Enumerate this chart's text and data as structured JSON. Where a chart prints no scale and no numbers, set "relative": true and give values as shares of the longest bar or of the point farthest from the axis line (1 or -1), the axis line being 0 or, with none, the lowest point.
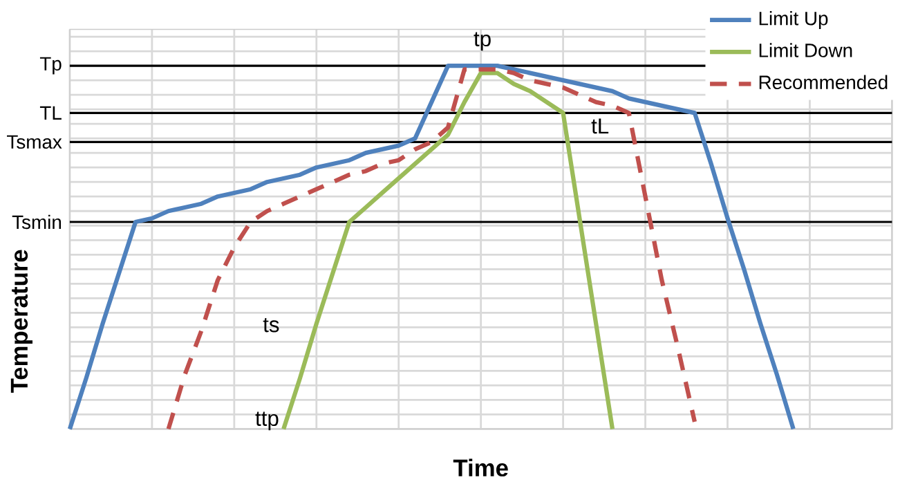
{
  "chart_data": {
    "type": "line",
    "relative": true,
    "xlabel": "Time",
    "ylabel": "Temperature",
    "grid": true,
    "legend": "top right",
    "categories": [
      null,
      null,
      null,
      null,
      null,
      null,
      null,
      null,
      null,
      null,
      null,
      null,
      null,
      null,
      null,
      null,
      null,
      null,
      null,
      null,
      null,
      null,
      null,
      null,
      null,
      null,
      null,
      null,
      null,
      null,
      null,
      null,
      null,
      null,
      null,
      null,
      null,
      null,
      null,
      null,
      null,
      null,
      null,
      null,
      null,
      null,
      null,
      null,
      null,
      null,
      null
    ],
    "series": [
      {
        "name": "Limit Up",
        "color": "#4f81bd",
        "values": [
          0,
          0.14,
          0.29,
          0.43,
          0.57,
          0.58,
          0.6,
          0.61,
          0.62,
          0.64,
          0.65,
          0.66,
          0.68,
          0.69,
          0.7,
          0.72,
          0.73,
          0.74,
          0.76,
          0.77,
          0.78,
          0.8,
          0.9,
          1,
          1,
          1,
          1,
          0.99,
          0.98,
          0.97,
          0.96,
          0.95,
          0.94,
          0.93,
          0.91,
          0.9,
          0.89,
          0.88,
          0.87,
          0.73,
          0.58,
          0.44,
          0.29,
          0.15,
          0,
          null,
          null,
          null,
          null,
          null,
          null
        ]
      },
      {
        "name": "Limit Down",
        "color": "#9bbb59",
        "values": [
          null,
          null,
          null,
          null,
          null,
          null,
          null,
          null,
          null,
          null,
          null,
          null,
          null,
          0,
          0.14,
          0.29,
          0.43,
          0.57,
          0.61,
          0.65,
          0.69,
          0.73,
          0.77,
          0.81,
          0.9,
          0.98,
          0.98,
          0.95,
          0.93,
          0.9,
          0.87,
          0.58,
          0.29,
          0,
          null,
          null,
          null,
          null,
          null,
          null,
          null,
          null,
          null,
          null,
          null,
          null,
          null,
          null,
          null,
          null,
          null
        ]
      },
      {
        "name": "Recommended",
        "color": "#c0504d",
        "line_style": "dashed",
        "values": [
          null,
          null,
          null,
          null,
          null,
          null,
          0,
          0.15,
          0.27,
          0.41,
          0.5,
          0.57,
          0.6,
          0.62,
          0.64,
          0.66,
          0.68,
          0.7,
          0.71,
          0.73,
          0.74,
          0.77,
          0.79,
          0.83,
          0.99,
          0.99,
          0.99,
          0.98,
          0.96,
          0.95,
          0.94,
          0.92,
          0.9,
          0.89,
          0.87,
          0.64,
          0.41,
          0.22,
          0.02,
          null,
          null,
          null,
          null,
          null,
          null,
          null,
          null,
          null,
          null,
          null,
          null
        ]
      }
    ],
    "ref_lines": [
      {
        "axis": "y",
        "value": 1,
        "label": "Tp"
      },
      {
        "axis": "y",
        "value": 0.87,
        "label": "TL"
      },
      {
        "axis": "y",
        "value": 0.79,
        "label": "Tsmax"
      },
      {
        "axis": "y",
        "value": 0.57,
        "label": "Tsmin"
      }
    ],
    "annotations": [
      "tp",
      "tL",
      "ts",
      "ttp"
    ]
  }
}
